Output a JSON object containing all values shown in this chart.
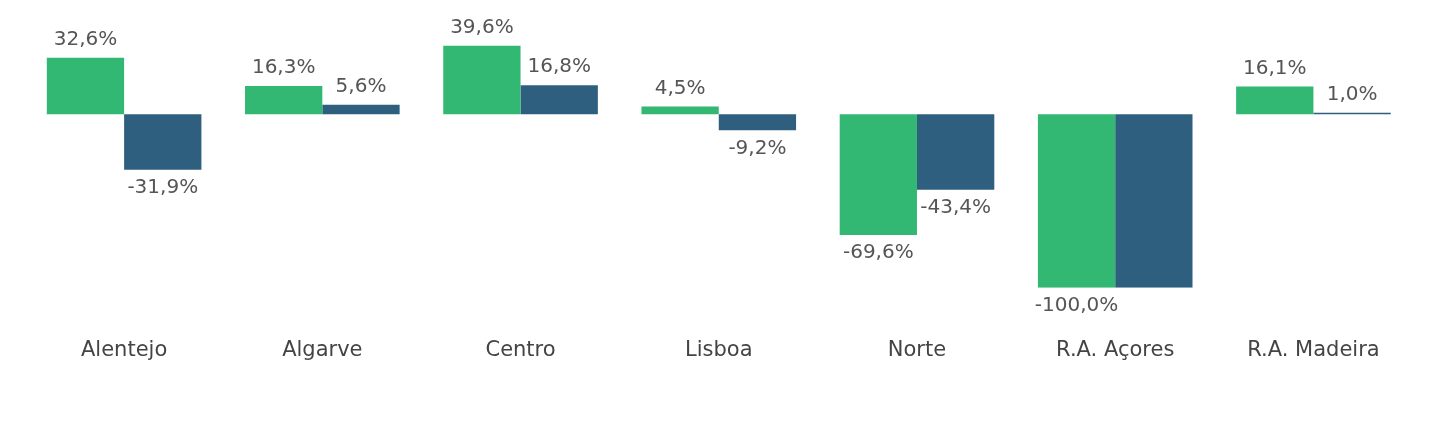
{
  "chart_data": {
    "type": "bar",
    "categories": [
      "Alentejo",
      "Algarve",
      "Centro",
      "Lisboa",
      "Norte",
      "R.A. Açores",
      "R.A. Madeira"
    ],
    "series": [
      {
        "color": "#33b874",
        "values": [
          32.6,
          16.3,
          39.6,
          4.5,
          -69.6,
          -100.0,
          16.1
        ],
        "value_labels": [
          "32,6%",
          "16,3%",
          "39,6%",
          "4,5%",
          "-69,6%",
          "-100,0%",
          "16,1%"
        ]
      },
      {
        "color": "#2f5f7e",
        "values": [
          -31.9,
          5.6,
          16.8,
          -9.2,
          -43.4,
          -100.0,
          1.0
        ],
        "value_labels": [
          "-31,9%",
          "5,6%",
          "16,8%",
          "-9,2%",
          "-43,4%",
          null,
          "1,0%"
        ]
      }
    ],
    "grid": false,
    "legend": false
  }
}
